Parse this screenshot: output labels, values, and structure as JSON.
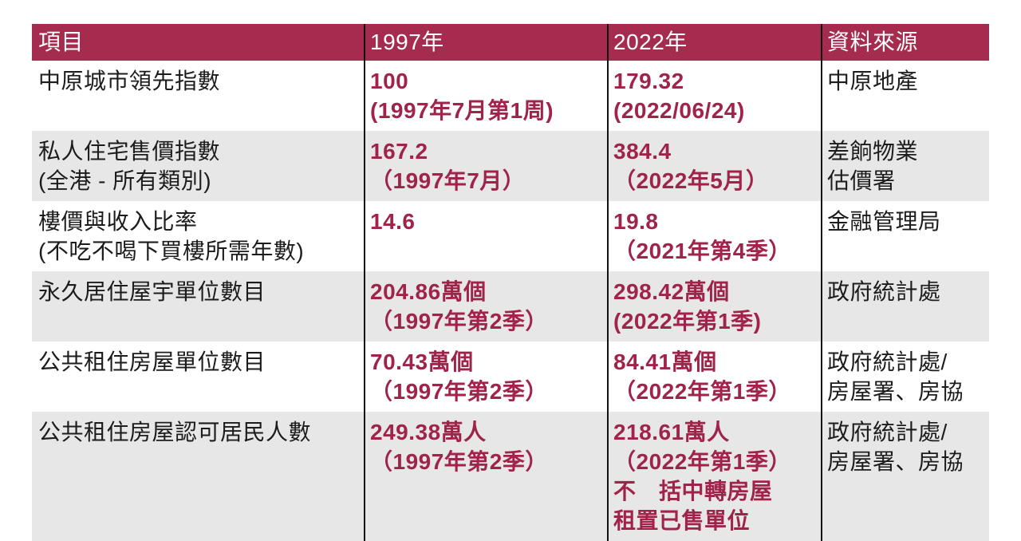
{
  "colors": {
    "header_bg": "#a52b4f",
    "header_text": "#ffffff",
    "row_alt_bg": "#e7e7e7",
    "value_text": "#a02449",
    "item_text": "#1c1c1c",
    "divider_line": "#111111"
  },
  "table": {
    "headers": {
      "item": "項目",
      "y1997": "1997年",
      "y2022": "2022年",
      "source": "資料來源"
    },
    "rows": [
      {
        "item": "中原城市領先指數",
        "v1997": "100\n(1997年7月第1周)",
        "v2022": "179.32\n(2022/06/24)",
        "source": "中原地產"
      },
      {
        "item": "私人住宅售價指數\n(全港 - 所有類別)",
        "v1997": "167.2\n（1997年7月）",
        "v2022": "384.4\n（2022年5月）",
        "source": "差餉物業\n估價署"
      },
      {
        "item": "樓價與收入比率\n(不吃不喝下買樓所需年數)",
        "v1997": "14.6",
        "v2022": "19.8\n（2021年第4季）",
        "source": "金融管理局"
      },
      {
        "item": "永久居住屋宇單位數目",
        "v1997": "204.86萬個\n（1997年第2季）",
        "v2022": "298.42萬個\n(2022年第1季)",
        "source": "政府統計處"
      },
      {
        "item": "公共租住房屋單位數目",
        "v1997": "70.43萬個\n（1997年第2季）",
        "v2022": "84.41萬個\n（2022年第1季）",
        "source": "政府統計處/\n房屋署、房協"
      },
      {
        "item": "公共租住房屋認可居民人數",
        "v1997": "249.38萬人\n（1997年第2季）",
        "v2022": "218.61萬人\n（2022年第1季）\n不　括中轉房屋\n租置已售單位",
        "source": "政府統計處/\n房屋署、房協"
      }
    ]
  },
  "chart_data": {
    "type": "table",
    "columns": [
      "項目",
      "1997年",
      "2022年",
      "資料來源"
    ],
    "rows": [
      [
        "中原城市領先指數",
        "100 (1997年7月第1周)",
        "179.32 (2022/06/24)",
        "中原地產"
      ],
      [
        "私人住宅售價指數 (全港 - 所有類別)",
        "167.2 （1997年7月）",
        "384.4 （2022年5月）",
        "差餉物業估價署"
      ],
      [
        "樓價與收入比率 (不吃不喝下買樓所需年數)",
        "14.6",
        "19.8 （2021年第4季）",
        "金融管理局"
      ],
      [
        "永久居住屋宇單位數目",
        "204.86萬個 （1997年第2季）",
        "298.42萬個 (2022年第1季)",
        "政府統計處"
      ],
      [
        "公共租住房屋單位數目",
        "70.43萬個 （1997年第2季）",
        "84.41萬個 （2022年第1季）",
        "政府統計處/房屋署、房協"
      ],
      [
        "公共租住房屋認可居民人數",
        "249.38萬人 （1997年第2季）",
        "218.61萬人 （2022年第1季） 不　括中轉房屋 租置已售單位",
        "政府統計處/房屋署、房協"
      ]
    ],
    "layout": {
      "header_style": "solid maroon bar with white text",
      "row_striping": "white / light-gray alternating starting white",
      "column_dividers": "vertical black lines between all four columns, full table height",
      "value_columns_style": "bold maroon text"
    }
  }
}
